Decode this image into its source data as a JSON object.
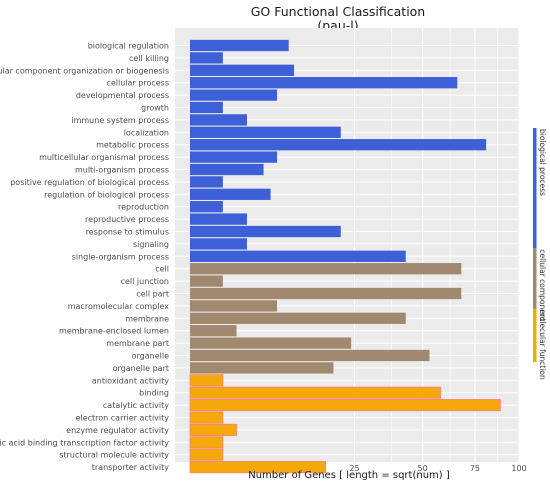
{
  "chart_data": {
    "type": "bar",
    "orientation": "horizontal",
    "title": "GO Functional Classification",
    "subtitle": "(pau-l)",
    "xlabel": "Number of Genes [ length = sqrt(num) ]",
    "ylabel": "",
    "x_scale": "sqrt",
    "xlim": [
      0,
      100
    ],
    "x_ticks": [
      25,
      50,
      75,
      100
    ],
    "grid": true,
    "legend_position": "right",
    "categories": [
      "biological regulation",
      "cell killing",
      "cellular component organization or biogenesis",
      "cellular process",
      "developmental process",
      "growth",
      "immune system process",
      "localization",
      "metabolic process",
      "multicellular organismal process",
      "multi-organism process",
      "positive regulation of biological process",
      "regulation of biological process",
      "reproduction",
      "reproductive process",
      "response to stimulus",
      "signaling",
      "single-organism process",
      "cell",
      "cell junction",
      "cell part",
      "macromolecular complex",
      "membrane",
      "membrane-enclosed lumen",
      "membrane part",
      "organelle",
      "organelle part",
      "antioxidant activity",
      "binding",
      "catalytic activity",
      "electron carrier activity",
      "enzyme regulator activity",
      "nucleic acid binding transcription factor activity",
      "structural molecule activity",
      "transporter activity"
    ],
    "values": [
      9,
      1,
      10,
      66,
      7,
      1,
      3,
      21,
      81,
      7,
      5,
      1,
      6,
      1,
      3,
      21,
      3,
      43,
      68,
      1,
      68,
      7,
      43,
      2,
      24,
      53,
      19,
      1,
      58,
      89,
      1,
      2,
      1,
      1,
      17
    ],
    "groups": [
      "biological process",
      "biological process",
      "biological process",
      "biological process",
      "biological process",
      "biological process",
      "biological process",
      "biological process",
      "biological process",
      "biological process",
      "biological process",
      "biological process",
      "biological process",
      "biological process",
      "biological process",
      "biological process",
      "biological process",
      "biological process",
      "cellular component",
      "cellular component",
      "cellular component",
      "cellular component",
      "cellular component",
      "cellular component",
      "cellular component",
      "cellular component",
      "cellular component",
      "molecular function",
      "molecular function",
      "molecular function",
      "molecular function",
      "molecular function",
      "molecular function",
      "molecular function",
      "molecular function"
    ],
    "series": [
      {
        "name": "biological process",
        "color": "#3d5fd8"
      },
      {
        "name": "cellular component",
        "color": "#a0896e"
      },
      {
        "name": "molecular function",
        "color": "#f5a80a"
      }
    ],
    "colors": {
      "panel_background": "#ebebeb",
      "gridline": "#ffffff",
      "text": "#4d4d4d",
      "title": "#1a1a1a",
      "bar_outline_molecular": "#ff7f7f"
    }
  }
}
